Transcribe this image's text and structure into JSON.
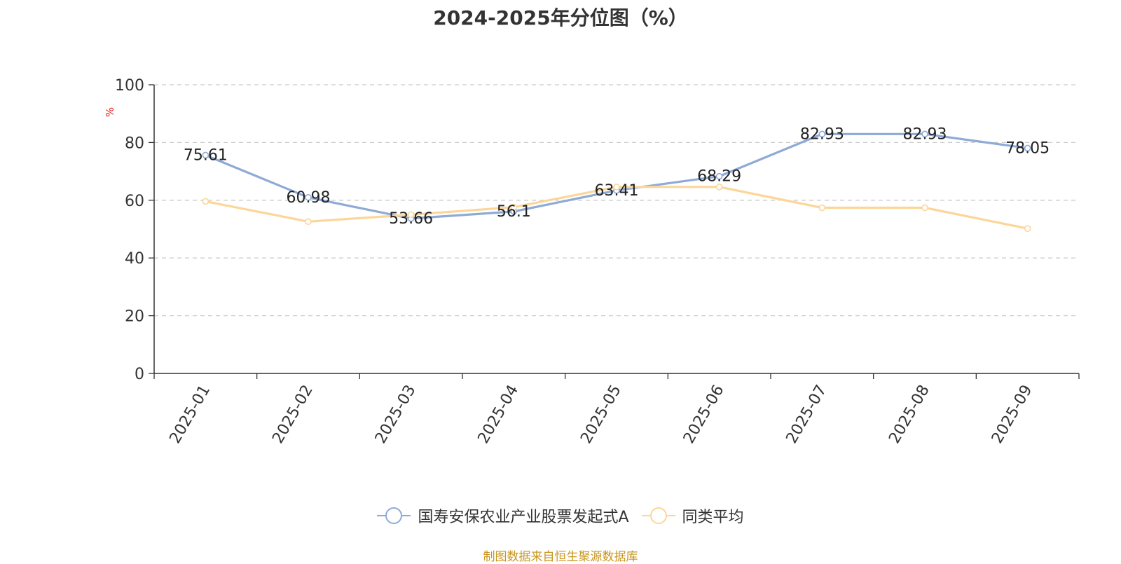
{
  "title": "2024-2025年分位图（%）",
  "source": "制图数据来自恒生聚源数据库",
  "chart_data": {
    "type": "line",
    "title": "2024-2025年分位图（%）",
    "ylabel": "%",
    "ylim": [
      0,
      100
    ],
    "yticks": [
      0,
      20,
      40,
      60,
      80,
      100
    ],
    "grid": true,
    "legend_position": "bottom",
    "categories": [
      "2025-01",
      "2025-02",
      "2025-03",
      "2025-04",
      "2025-05",
      "2025-06",
      "2025-07",
      "2025-08",
      "2025-09"
    ],
    "series": [
      {
        "name": "国寿安保农业产业股票发起式A",
        "color": "#8eaad6",
        "values": [
          75.61,
          60.98,
          53.66,
          56.1,
          63.41,
          68.29,
          82.93,
          82.93,
          78.05
        ],
        "labels": [
          "75.61",
          "60.98",
          "53.66",
          "56.1",
          "63.41",
          "68.29",
          "82.93",
          "82.93",
          "78.05"
        ]
      },
      {
        "name": "同类平均",
        "color": "#fcd699",
        "values": [
          59.6,
          52.6,
          55.0,
          57.6,
          64.6,
          64.6,
          57.4,
          57.4,
          50.2
        ]
      }
    ]
  }
}
